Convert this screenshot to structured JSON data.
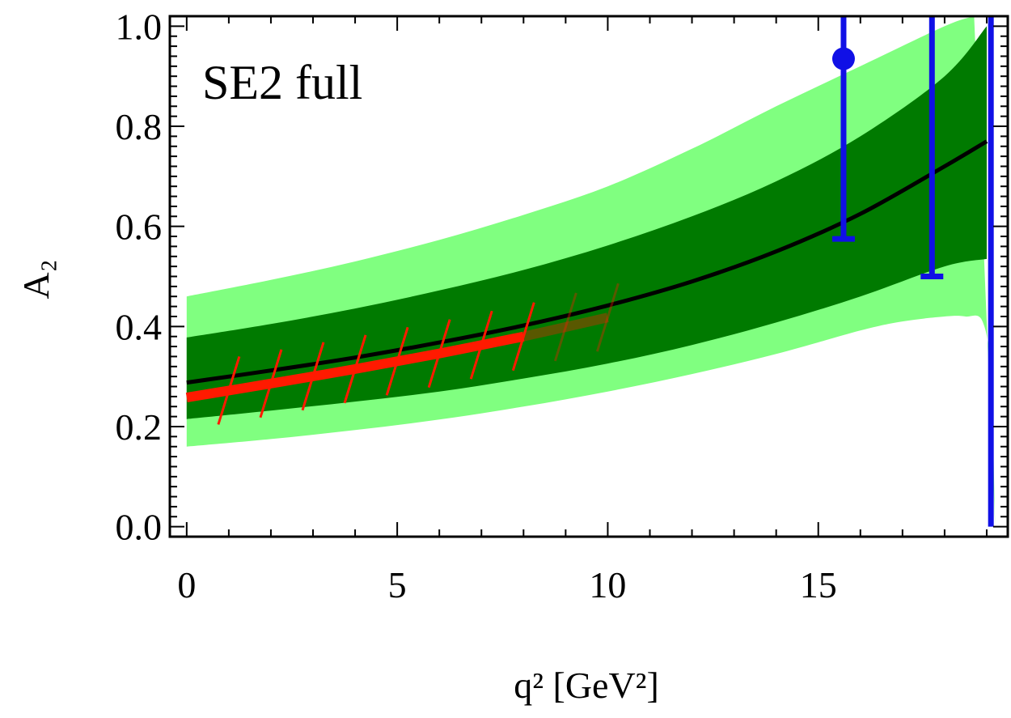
{
  "chart_data": {
    "type": "line",
    "annotation": "SE2 full",
    "xlabel": "q² [GeV²]",
    "ylabel": "A₂",
    "xlim": [
      -0.4,
      19.5
    ],
    "ylim": [
      -0.02,
      1.02
    ],
    "x_ticks": [
      "0",
      "5",
      "10",
      "15"
    ],
    "y_ticks": [
      "0.0",
      "0.2",
      "0.4",
      "0.6",
      "0.8",
      "1.0"
    ],
    "grid": false,
    "colors": {
      "outer_band": "#80ff80",
      "inner_band": "#007a00",
      "central_line": "#000000",
      "lcsr": "#ff1a00",
      "lattice": "#1010e6"
    },
    "q2_max": 19.2,
    "series": [
      {
        "name": "central",
        "x": [
          0,
          2,
          4,
          6,
          8,
          10,
          12,
          14,
          16,
          18,
          19.0
        ],
        "values": [
          0.288,
          0.312,
          0.338,
          0.368,
          0.402,
          0.442,
          0.49,
          0.55,
          0.625,
          0.72,
          0.77
        ]
      },
      {
        "name": "inner-band-upper",
        "x": [
          0,
          2,
          4,
          6,
          8,
          10,
          12,
          14,
          16,
          18,
          19.0
        ],
        "values": [
          0.378,
          0.405,
          0.436,
          0.472,
          0.513,
          0.562,
          0.62,
          0.69,
          0.78,
          0.9,
          1.0
        ]
      },
      {
        "name": "inner-band-lower",
        "x": [
          0,
          2,
          4,
          6,
          8,
          10,
          12,
          14,
          16,
          18,
          19.0
        ],
        "values": [
          0.215,
          0.232,
          0.25,
          0.27,
          0.296,
          0.326,
          0.363,
          0.408,
          0.46,
          0.52,
          0.535
        ]
      },
      {
        "name": "outer-band-upper",
        "x": [
          0,
          2,
          4,
          6,
          8,
          10,
          12,
          14,
          16,
          18,
          18.7
        ],
        "values": [
          0.46,
          0.493,
          0.53,
          0.573,
          0.623,
          0.68,
          0.755,
          0.84,
          0.92,
          1.0,
          1.02
        ]
      },
      {
        "name": "outer-band-lower",
        "x": [
          0,
          2,
          4,
          6,
          8,
          10,
          12,
          14,
          16,
          17,
          18,
          18.5,
          18.9,
          19.1,
          19.2
        ],
        "values": [
          0.16,
          0.175,
          0.193,
          0.214,
          0.24,
          0.27,
          0.305,
          0.345,
          0.392,
          0.41,
          0.42,
          0.42,
          0.41,
          0.3,
          0.0
        ]
      },
      {
        "name": "LCSR",
        "x": [
          0,
          2,
          4,
          6,
          8,
          10
        ],
        "values": [
          0.258,
          0.286,
          0.315,
          0.346,
          0.38,
          0.418
        ],
        "tick_x": [
          1,
          2,
          3,
          4,
          5,
          6,
          7,
          8,
          9,
          10
        ],
        "faded_from": 8
      },
      {
        "name": "lattice",
        "points": [
          {
            "x": 15.6,
            "y": 0.935,
            "yerr_low": 0.575,
            "yerr_high": 1.02,
            "marker": true
          },
          {
            "x": 17.7,
            "y": 0.5,
            "yerr_low": 0.5,
            "yerr_high": 1.02,
            "marker": false
          },
          {
            "x": 19.1,
            "y": 0.0,
            "yerr_low": 0.0,
            "yerr_high": 1.02,
            "marker": false
          }
        ]
      }
    ]
  }
}
